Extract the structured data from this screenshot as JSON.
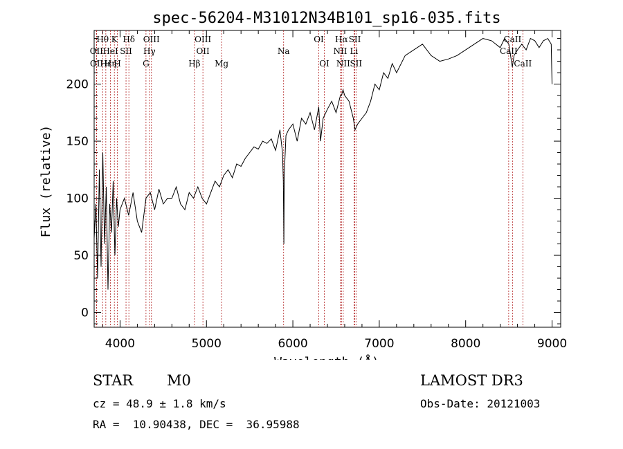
{
  "chart_data": {
    "type": "line",
    "title": "spec-56204-M31012N34B101_sp16-035.fits",
    "xlabel": "Wavelength (Å)",
    "ylabel": "Flux (relative)",
    "xlim": [
      3700,
      9100
    ],
    "ylim": [
      -13,
      247
    ],
    "xticks": [
      4000,
      5000,
      6000,
      7000,
      8000,
      9000
    ],
    "yticks": [
      0,
      50,
      100,
      150,
      200
    ],
    "x_minor_step": 200,
    "y_minor_step": 10,
    "line_color": "#000000",
    "marker_color": "#b22222",
    "series": [
      {
        "name": "flux",
        "x": [
          3700,
          3720,
          3740,
          3760,
          3780,
          3800,
          3820,
          3840,
          3860,
          3880,
          3900,
          3920,
          3940,
          3960,
          3980,
          4000,
          4050,
          4100,
          4150,
          4200,
          4250,
          4300,
          4350,
          4400,
          4450,
          4500,
          4550,
          4600,
          4650,
          4700,
          4750,
          4800,
          4850,
          4900,
          4950,
          5000,
          5050,
          5100,
          5150,
          5200,
          5250,
          5300,
          5350,
          5400,
          5450,
          5500,
          5550,
          5600,
          5650,
          5700,
          5750,
          5800,
          5850,
          5880,
          5890,
          5896,
          5900,
          5920,
          5950,
          6000,
          6050,
          6100,
          6150,
          6200,
          6250,
          6300,
          6320,
          6350,
          6400,
          6450,
          6500,
          6550,
          6563,
          6580,
          6600,
          6650,
          6700,
          6720,
          6750,
          6800,
          6850,
          6900,
          6950,
          7000,
          7050,
          7100,
          7150,
          7200,
          7300,
          7400,
          7500,
          7600,
          7700,
          7800,
          7900,
          8000,
          8100,
          8200,
          8300,
          8400,
          8450,
          8500,
          8540,
          8560,
          8600,
          8650,
          8700,
          8750,
          8800,
          8850,
          8900,
          8950,
          8990,
          9000
        ],
        "y": [
          65,
          95,
          30,
          125,
          40,
          140,
          60,
          110,
          20,
          95,
          70,
          115,
          50,
          100,
          75,
          90,
          100,
          85,
          105,
          80,
          70,
          100,
          105,
          90,
          108,
          95,
          100,
          100,
          110,
          95,
          90,
          105,
          100,
          110,
          100,
          95,
          105,
          115,
          110,
          120,
          125,
          118,
          130,
          128,
          135,
          140,
          145,
          143,
          150,
          148,
          152,
          142,
          160,
          140,
          115,
          60,
          120,
          155,
          160,
          165,
          150,
          170,
          165,
          175,
          160,
          180,
          150,
          170,
          178,
          185,
          175,
          190,
          190,
          195,
          190,
          185,
          170,
          160,
          165,
          170,
          175,
          185,
          200,
          195,
          210,
          205,
          218,
          210,
          225,
          230,
          235,
          225,
          220,
          222,
          225,
          230,
          235,
          240,
          238,
          232,
          240,
          235,
          215,
          225,
          230,
          235,
          230,
          240,
          238,
          232,
          238,
          240,
          235,
          200
        ]
      }
    ],
    "spectral_lines": [
      {
        "label": "Hθ",
        "wavelength": 3798,
        "row": 1
      },
      {
        "label": "OII",
        "wavelength": 3727,
        "row": 2
      },
      {
        "label": "OII",
        "wavelength": 3729,
        "row": 3
      },
      {
        "label": "Hε",
        "wavelength": 3835,
        "row": 3
      },
      {
        "label": "HeI",
        "wavelength": 3889,
        "row": 2
      },
      {
        "label": "K",
        "wavelength": 3934,
        "row": 1
      },
      {
        "label": "Hη",
        "wavelength": 3889,
        "row": 3
      },
      {
        "label": "SII",
        "wavelength": 4069,
        "row": 2
      },
      {
        "label": "H",
        "wavelength": 3969,
        "row": 3
      },
      {
        "label": "Hδ",
        "wavelength": 4102,
        "row": 1
      },
      {
        "label": "OIII",
        "wavelength": 4363,
        "row": 1
      },
      {
        "label": "Hγ",
        "wavelength": 4340,
        "row": 2
      },
      {
        "label": "G",
        "wavelength": 4300,
        "row": 3
      },
      {
        "label": "OIII",
        "wavelength": 4959,
        "row": 1
      },
      {
        "label": "OII",
        "wavelength": 4959,
        "row": 2
      },
      {
        "label": "Hβ",
        "wavelength": 4861,
        "row": 3
      },
      {
        "label": "Mg",
        "wavelength": 5175,
        "row": 3
      },
      {
        "label": "Na",
        "wavelength": 5893,
        "row": 2
      },
      {
        "label": "OI",
        "wavelength": 6300,
        "row": 1
      },
      {
        "label": "OI",
        "wavelength": 6364,
        "row": 3
      },
      {
        "label": "Hα",
        "wavelength": 6563,
        "row": 1
      },
      {
        "label": "SII",
        "wavelength": 6717,
        "row": 1
      },
      {
        "label": "NII",
        "wavelength": 6548,
        "row": 2
      },
      {
        "label": "Li",
        "wavelength": 6708,
        "row": 2
      },
      {
        "label": "NII",
        "wavelength": 6583,
        "row": 3
      },
      {
        "label": "SII",
        "wavelength": 6731,
        "row": 3
      },
      {
        "label": "CaII",
        "wavelength": 8542,
        "row": 1
      },
      {
        "label": "CaII",
        "wavelength": 8498,
        "row": 2
      },
      {
        "label": "CaII",
        "wavelength": 8662,
        "row": 3
      }
    ]
  },
  "info": {
    "object_class": "STAR",
    "subclass": "M0",
    "survey": "LAMOST DR3",
    "redshift_line": "cz = 48.9 ± 1.8 km/s",
    "obs_date": "Obs-Date: 20121003",
    "coords": "RA =  10.90438, DEC =  36.95988"
  }
}
